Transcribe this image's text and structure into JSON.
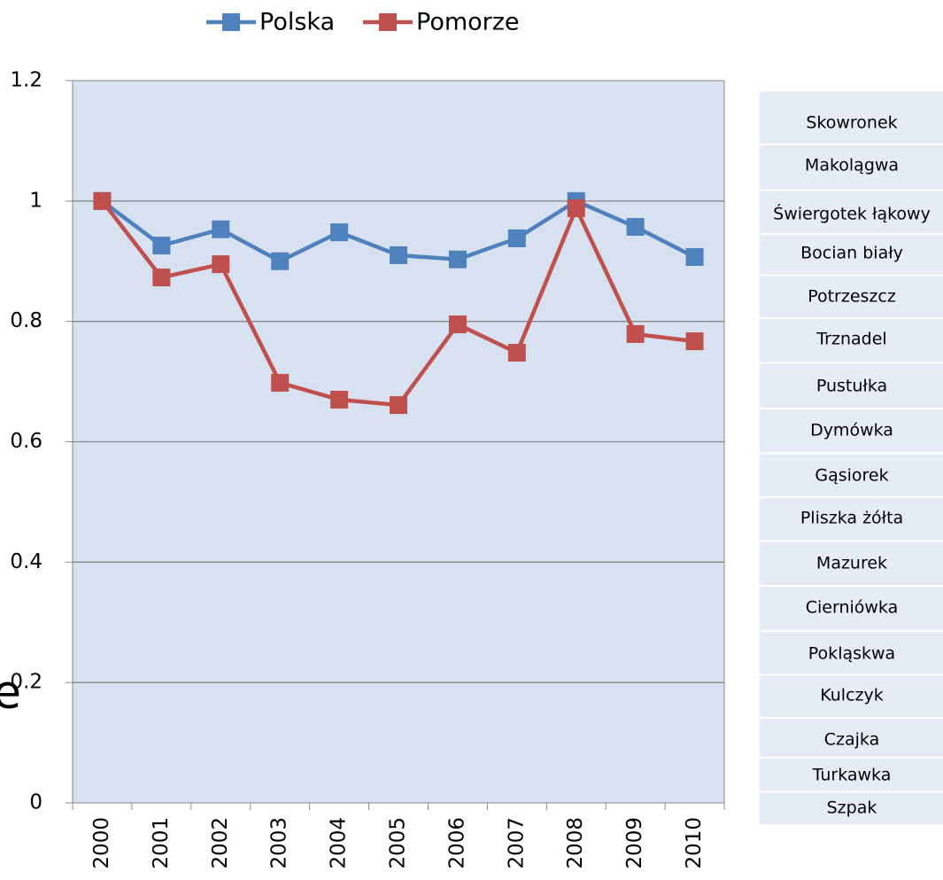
{
  "chart_data": {
    "type": "line",
    "categories": [
      "2000",
      "2001",
      "2002",
      "2003",
      "2004",
      "2005",
      "2006",
      "2007",
      "2008",
      "2009",
      "2010"
    ],
    "series": [
      {
        "name": "Polska",
        "color": "#4f81bd",
        "values": [
          1.0,
          0.926,
          0.953,
          0.9,
          0.948,
          0.91,
          0.903,
          0.938,
          1.0,
          0.957,
          0.907
        ]
      },
      {
        "name": "Pomorze",
        "color": "#c0504d",
        "values": [
          1.0,
          0.873,
          0.895,
          0.698,
          0.67,
          0.661,
          0.795,
          0.748,
          0.988,
          0.779,
          0.767
        ]
      }
    ],
    "ylim": [
      0,
      1.2
    ],
    "yticks": [
      0,
      0.2,
      0.4,
      0.6,
      0.8,
      1,
      1.2
    ],
    "grid": true,
    "legend": "top"
  },
  "side_list": [
    "Skowronek",
    "Makolągwa",
    "Świergotek łąkowy",
    "Bocian biały",
    "Potrzeszcz",
    "Trznadel",
    "Pustułka",
    "Dymówka",
    "Gąsiorek",
    "Pliszka żółta",
    "Mazurek",
    "Cierniówka",
    "Pokląskwa",
    "Kulczyk",
    "Czajka",
    "Turkawka",
    "Szpak"
  ],
  "fragment": "e"
}
